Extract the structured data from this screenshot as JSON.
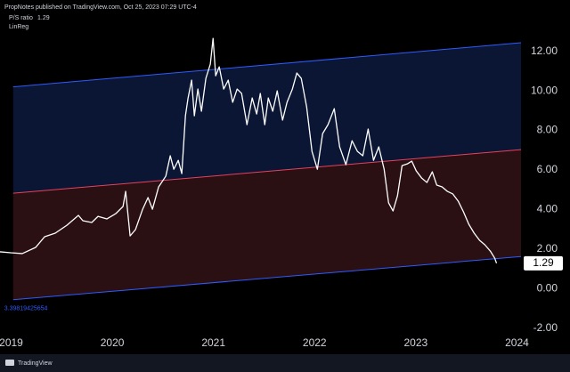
{
  "header": {
    "publisher": "PropNotes published on TradingView.com, Oct 25, 2023 07:29 UTC-4"
  },
  "footer": {
    "brand": "TradingView"
  },
  "chart_data": {
    "type": "line",
    "indicator": "LinReg",
    "annotations": [
      "3.39819425654"
    ],
    "xlim": [
      2018.89,
      2024.04
    ],
    "xticks": [
      2019,
      2020,
      2021,
      2022,
      2023,
      2024
    ],
    "ylim": [
      -2.27,
      13.78
    ],
    "yticks": [
      {
        "value": -2,
        "label": "-2.00"
      },
      {
        "value": 0,
        "label": "0.00"
      },
      {
        "value": 2,
        "label": "2.00"
      },
      {
        "value": 4,
        "label": "4.00"
      },
      {
        "value": 6,
        "label": "6.00"
      },
      {
        "value": 8,
        "label": "8.00"
      },
      {
        "value": 10,
        "label": "10.00"
      },
      {
        "value": 12,
        "label": "12.00"
      }
    ],
    "channel": {
      "x": [
        2019.02,
        2024.04
      ],
      "upper": [
        10.2,
        12.43
      ],
      "middle": [
        4.83,
        7.03
      ],
      "lower": [
        -0.55,
        1.63
      ],
      "upper_color": "#2e5bff",
      "middle_color": "#e8415c",
      "lower_color": "#2e5bff",
      "upper_fill": "#0b1635",
      "lower_fill": "#2a0f13"
    },
    "series": [
      {
        "name": "P/S ratio",
        "color": "#ffffff",
        "x": [
          2018.89,
          2018.996,
          2019.11,
          2019.242,
          2019.331,
          2019.436,
          2019.551,
          2019.665,
          2019.709,
          2019.797,
          2019.859,
          2019.947,
          2020.035,
          2020.106,
          2020.132,
          2020.176,
          2020.229,
          2020.3,
          2020.353,
          2020.397,
          2020.458,
          2020.529,
          2020.573,
          2020.608,
          2020.652,
          2020.687,
          2020.723,
          2020.749,
          2020.784,
          2020.811,
          2020.846,
          2020.881,
          2020.925,
          2020.969,
          2020.996,
          2021.022,
          2021.057,
          2021.101,
          2021.146,
          2021.19,
          2021.234,
          2021.278,
          2021.331,
          2021.383,
          2021.427,
          2021.463,
          2021.507,
          2021.542,
          2021.586,
          2021.63,
          2021.683,
          2021.727,
          2021.78,
          2021.824,
          2021.868,
          2021.921,
          2021.974,
          2022.027,
          2022.079,
          2022.132,
          2022.194,
          2022.247,
          2022.309,
          2022.37,
          2022.423,
          2022.476,
          2022.529,
          2022.582,
          2022.634,
          2022.687,
          2022.731,
          2022.775,
          2022.819,
          2022.864,
          2022.916,
          2022.96,
          2023.004,
          2023.057,
          2023.11,
          2023.163,
          2023.207,
          2023.26,
          2023.313,
          2023.366,
          2023.419,
          2023.471,
          2023.524,
          2023.577,
          2023.63,
          2023.683,
          2023.736,
          2023.78,
          2023.798
        ],
        "values": [
          1.87,
          1.82,
          1.78,
          2.09,
          2.63,
          2.81,
          3.21,
          3.71,
          3.44,
          3.35,
          3.66,
          3.53,
          3.8,
          4.16,
          4.92,
          2.67,
          2.99,
          4.02,
          4.61,
          4.02,
          5.15,
          5.69,
          6.72,
          6.04,
          6.49,
          5.82,
          8.74,
          9.64,
          10.54,
          8.74,
          10.09,
          8.97,
          10.63,
          11.35,
          12.65,
          10.76,
          11.21,
          10.09,
          10.54,
          9.42,
          10.09,
          9.87,
          8.29,
          9.64,
          8.83,
          9.87,
          8.29,
          9.64,
          8.97,
          10.0,
          8.52,
          9.42,
          10.09,
          10.9,
          10.63,
          9.19,
          6.94,
          6.04,
          7.84,
          8.29,
          9.1,
          7.17,
          6.27,
          7.48,
          6.94,
          6.72,
          8.07,
          6.49,
          7.17,
          6.04,
          4.34,
          3.93,
          4.7,
          6.22,
          6.31,
          6.45,
          5.96,
          5.6,
          5.37,
          5.91,
          5.24,
          5.15,
          4.92,
          4.79,
          4.43,
          3.89,
          3.26,
          2.81,
          2.45,
          2.22,
          1.91,
          1.55,
          1.29
        ]
      }
    ]
  }
}
